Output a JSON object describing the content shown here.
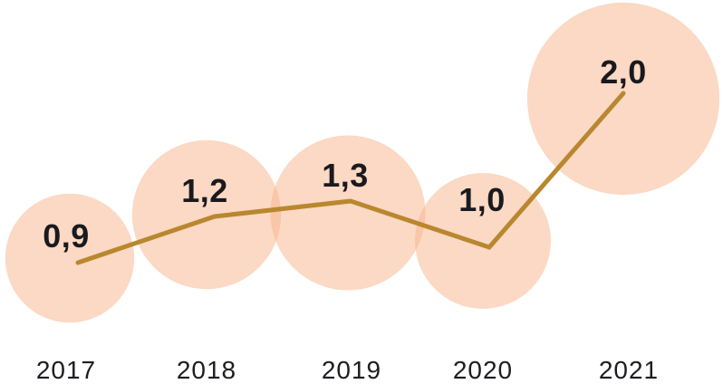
{
  "chart": {
    "background_color": "#ffffff",
    "bubble_color": "#f7b38a",
    "bubble_opacity": 0.5,
    "line_color": "#b9872f",
    "value_label_color": "#1a1a1e",
    "year_label_color": "#1c1c22"
  },
  "chart_data": {
    "type": "line",
    "variant": "line-with-proportional-bubbles",
    "categories": [
      "2017",
      "2018",
      "2019",
      "2020",
      "2021"
    ],
    "values": [
      0.9,
      1.2,
      1.3,
      1.0,
      2.0
    ],
    "value_labels": [
      "0,9",
      "1,2",
      "1,3",
      "1,0",
      "2,0"
    ],
    "decimal_separator": ",",
    "title": "",
    "xlabel": "",
    "ylabel": "",
    "ylim": [
      0,
      2.2
    ],
    "grid": false,
    "legend": null,
    "bubble_sizing": "area-proportional-to-value"
  }
}
